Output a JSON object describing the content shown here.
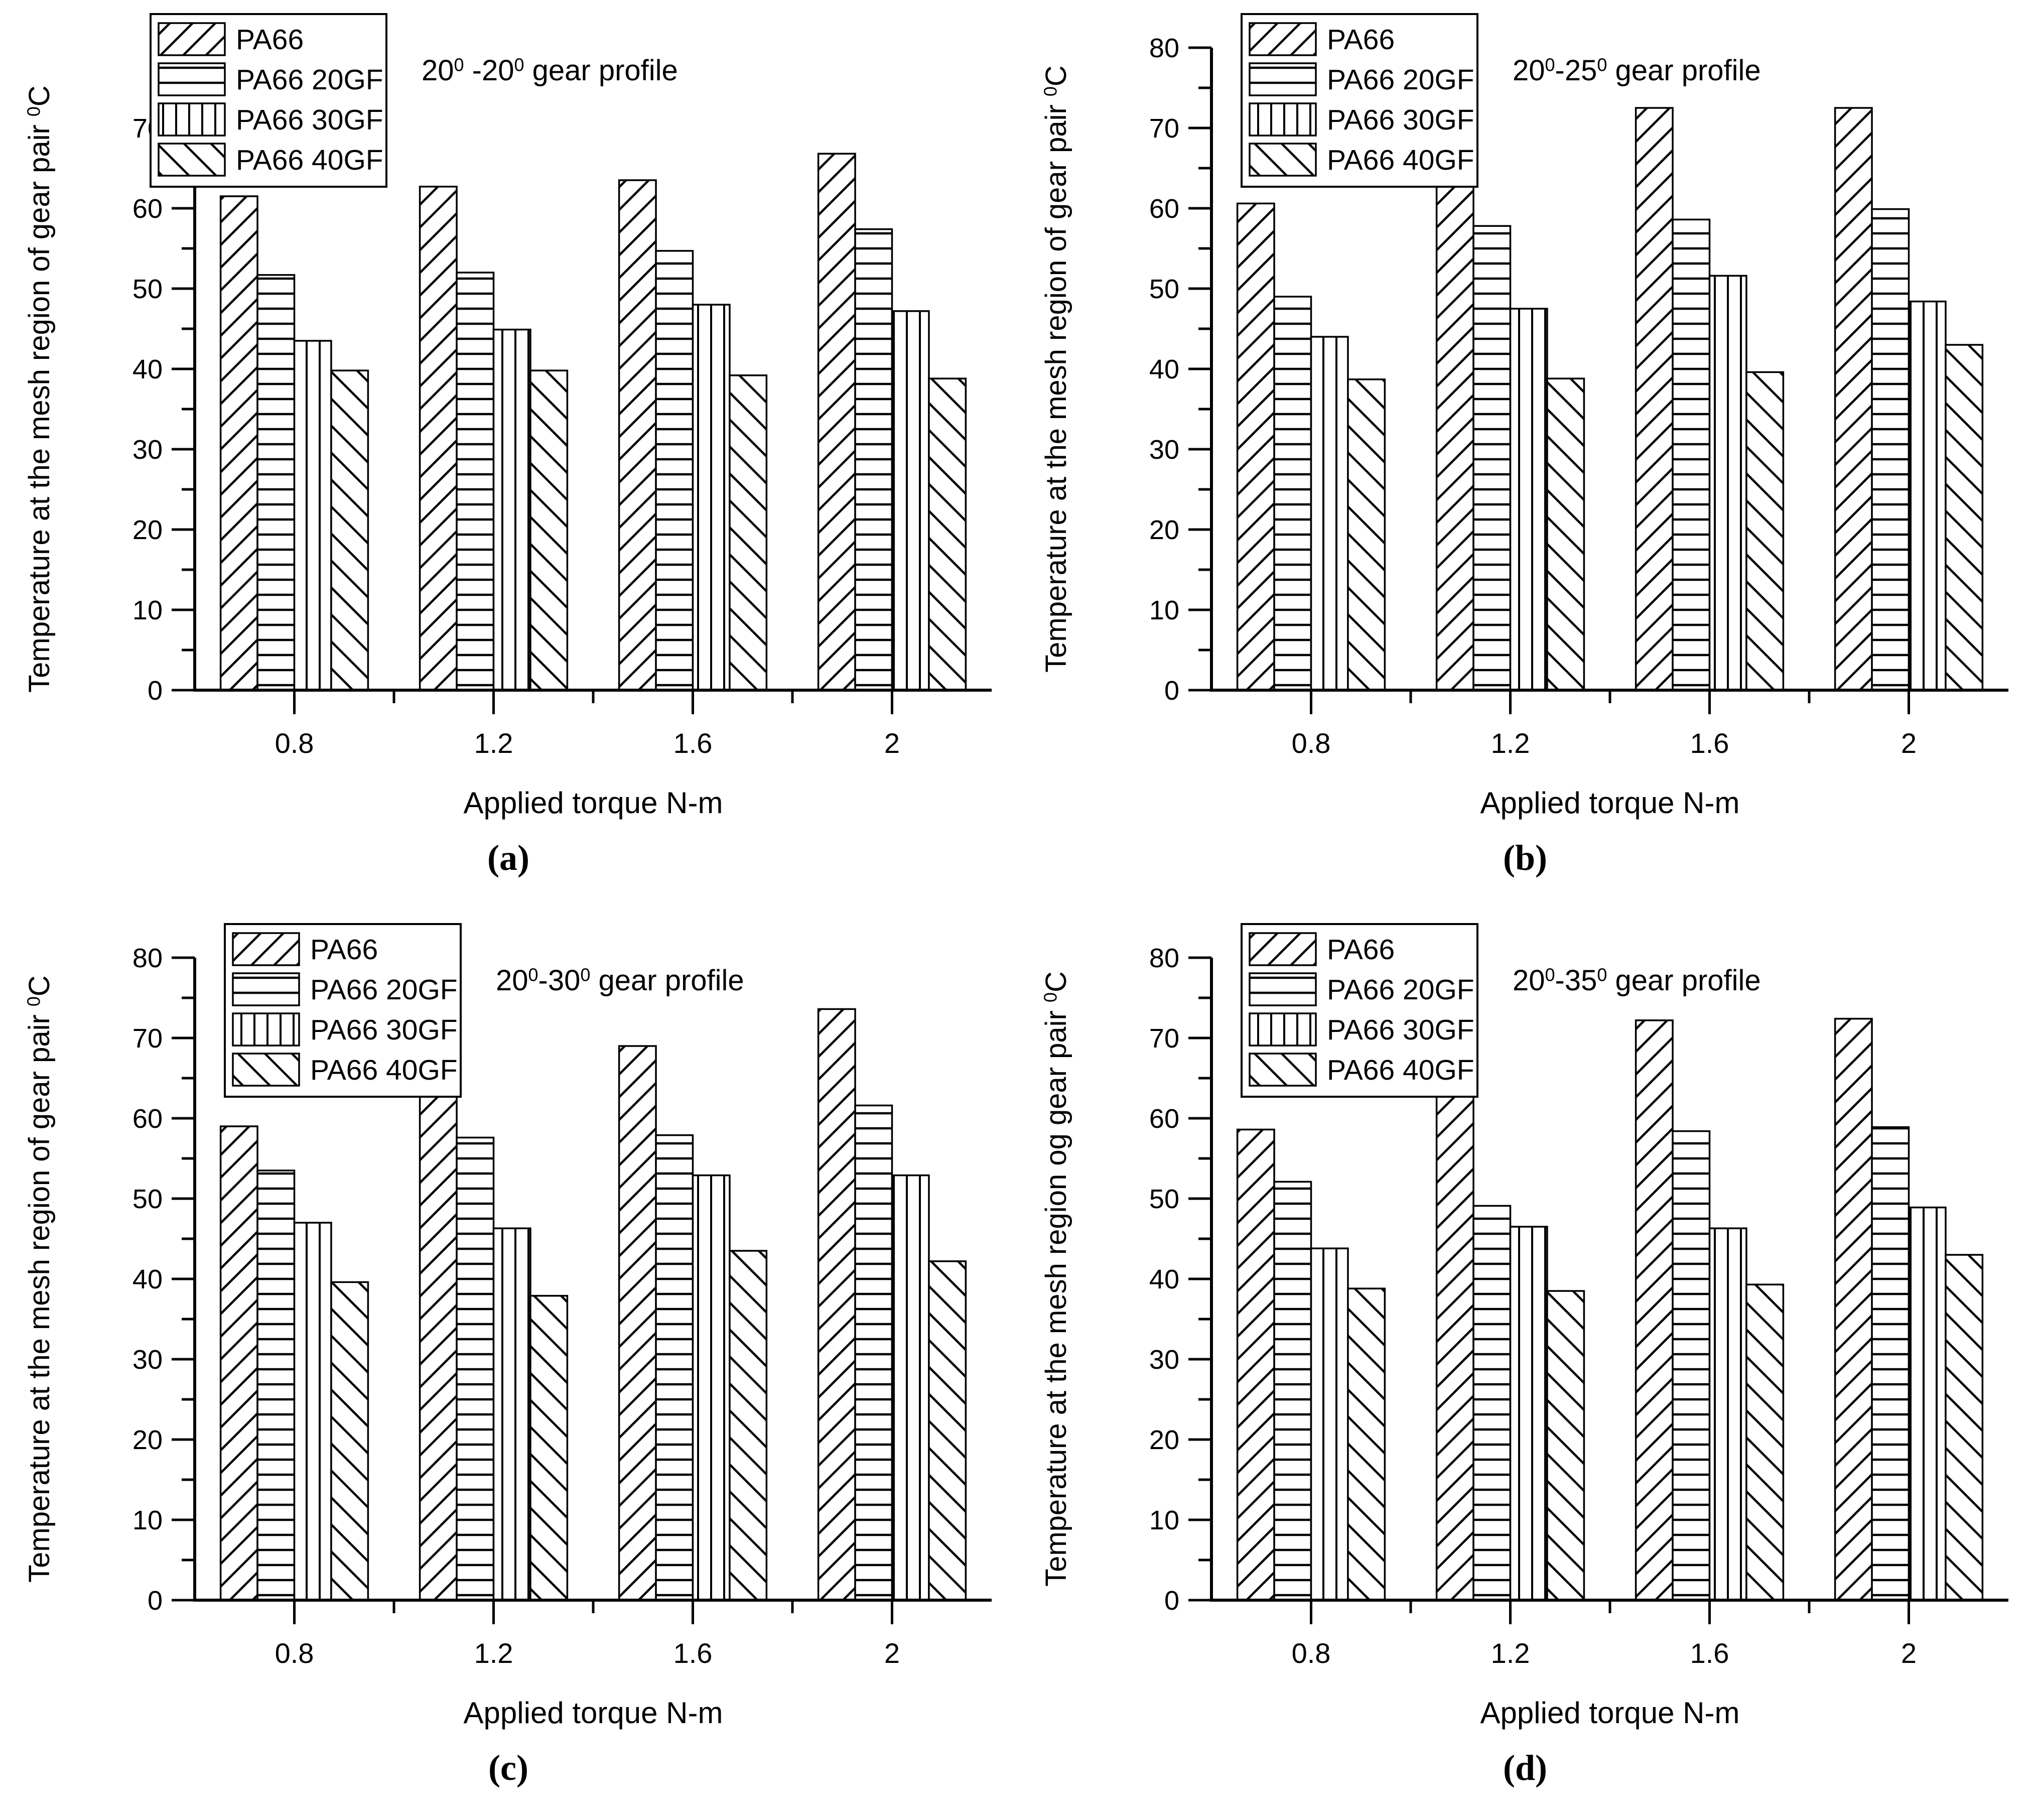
{
  "figure_kind": "four-panel bar chart figure",
  "colors": {
    "ink": "#000000",
    "background": "#ffffff"
  },
  "chart_data": [
    {
      "type": "bar",
      "panel_label": "(a)",
      "title": "20^0 -20^0 gear profile",
      "xlabel": "Applied torque N-m",
      "ylabel": "Temperature at the mesh region of gear pair ^0C",
      "categories": [
        "0.8",
        "1.2",
        "1.6",
        "2"
      ],
      "ylim": [
        0,
        75
      ],
      "ytick_major": 10,
      "ytick_minor": 5,
      "grid": false,
      "legend_position": "top-left",
      "series": [
        {
          "name": "PA66",
          "hatch": "diagonal-up-hatch-icon",
          "values": [
            61.5,
            62.7,
            63.5,
            66.8
          ]
        },
        {
          "name": "PA66 20GF",
          "hatch": "horizontal-hatch-icon",
          "values": [
            51.7,
            52.0,
            54.7,
            57.4
          ]
        },
        {
          "name": "PA66 30GF",
          "hatch": "vertical-hatch-icon",
          "values": [
            43.5,
            44.9,
            48.0,
            47.2
          ]
        },
        {
          "name": "PA66 40GF",
          "hatch": "diagonal-down-hatch-icon",
          "values": [
            39.8,
            39.8,
            39.2,
            38.8
          ]
        }
      ]
    },
    {
      "type": "bar",
      "panel_label": "(b)",
      "title": "20^0-25^0 gear profile",
      "xlabel": "Applied torque N-m",
      "ylabel": "Temperature at the mesh region of gear pair ^0C",
      "categories": [
        "0.8",
        "1.2",
        "1.6",
        "2"
      ],
      "ylim": [
        0,
        80
      ],
      "ytick_major": 10,
      "ytick_minor": 5,
      "grid": false,
      "legend_position": "top-left",
      "series": [
        {
          "name": "PA66",
          "hatch": "diagonal-up-hatch-icon",
          "values": [
            60.6,
            66.0,
            72.5,
            72.5
          ]
        },
        {
          "name": "PA66 20GF",
          "hatch": "horizontal-hatch-icon",
          "values": [
            49.0,
            57.8,
            58.6,
            59.9
          ]
        },
        {
          "name": "PA66 30GF",
          "hatch": "vertical-hatch-icon",
          "values": [
            44.0,
            47.5,
            51.6,
            48.4
          ]
        },
        {
          "name": "PA66 40GF",
          "hatch": "diagonal-down-hatch-icon",
          "values": [
            38.7,
            38.8,
            39.6,
            43.0
          ]
        }
      ]
    },
    {
      "type": "bar",
      "panel_label": "(c)",
      "title": "20^0-30^0 gear profile",
      "xlabel": "Applied torque N-m",
      "ylabel": "Temperature at the mesh region of gear pair ^0C",
      "categories": [
        "0.8",
        "1.2",
        "1.6",
        "2"
      ],
      "ylim": [
        0,
        80
      ],
      "ytick_major": 10,
      "ytick_minor": 5,
      "grid": false,
      "legend_position": "top-left",
      "series": [
        {
          "name": "PA66",
          "hatch": "diagonal-up-hatch-icon",
          "values": [
            59.0,
            66.2,
            69.0,
            73.6
          ]
        },
        {
          "name": "PA66 20GF",
          "hatch": "horizontal-hatch-icon",
          "values": [
            53.5,
            57.6,
            57.9,
            61.6
          ]
        },
        {
          "name": "PA66 30GF",
          "hatch": "vertical-hatch-icon",
          "values": [
            47.0,
            46.3,
            52.9,
            52.9
          ]
        },
        {
          "name": "PA66 40GF",
          "hatch": "diagonal-down-hatch-icon",
          "values": [
            39.6,
            37.9,
            43.5,
            42.2
          ]
        }
      ]
    },
    {
      "type": "bar",
      "panel_label": "(d)",
      "title": "20^0-35^0 gear profile",
      "xlabel": "Applied torque N-m",
      "ylabel": "Temperature at the mesh region og gear pair ^0C",
      "categories": [
        "0.8",
        "1.2",
        "1.6",
        "2"
      ],
      "ylim": [
        0,
        80
      ],
      "ytick_major": 10,
      "ytick_minor": 5,
      "grid": false,
      "legend_position": "top-left",
      "series": [
        {
          "name": "PA66",
          "hatch": "diagonal-up-hatch-icon",
          "values": [
            58.6,
            65.1,
            72.2,
            72.4
          ]
        },
        {
          "name": "PA66 20GF",
          "hatch": "horizontal-hatch-icon",
          "values": [
            52.1,
            49.1,
            58.4,
            58.9
          ]
        },
        {
          "name": "PA66 30GF",
          "hatch": "vertical-hatch-icon",
          "values": [
            43.8,
            46.5,
            46.3,
            48.9
          ]
        },
        {
          "name": "PA66 40GF",
          "hatch": "diagonal-down-hatch-icon",
          "values": [
            38.8,
            38.5,
            39.3,
            43.0
          ]
        }
      ]
    }
  ]
}
